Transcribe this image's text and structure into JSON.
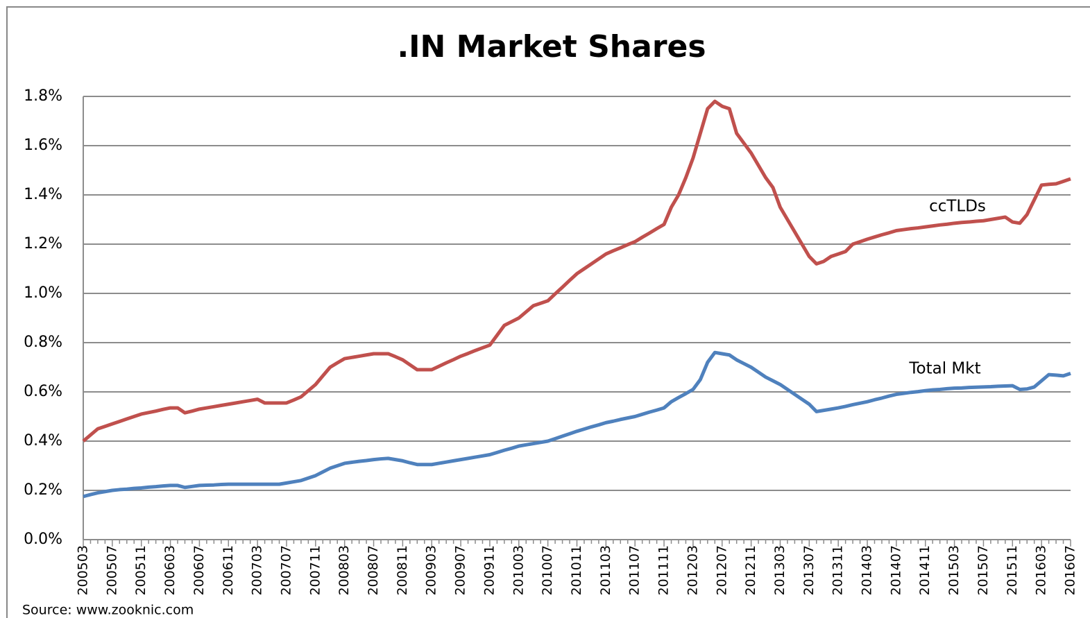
{
  "chart_data": {
    "type": "line",
    "title": ".IN Market Shares",
    "source": "Source: www.zooknic.com",
    "categories": [
      "200503",
      null,
      null,
      null,
      "200507",
      null,
      null,
      null,
      "200511",
      null,
      null,
      null,
      "200603",
      null,
      null,
      null,
      "200607",
      null,
      null,
      null,
      "200611",
      null,
      null,
      null,
      "200703",
      null,
      null,
      null,
      "200707",
      null,
      null,
      null,
      "200711",
      null,
      null,
      null,
      "200803",
      null,
      null,
      null,
      "200807",
      null,
      null,
      null,
      "200811",
      null,
      null,
      null,
      "200903",
      null,
      null,
      null,
      "200907",
      null,
      null,
      null,
      "200911",
      null,
      null,
      null,
      "201003",
      null,
      null,
      null,
      "201007",
      null,
      null,
      null,
      "201011",
      null,
      null,
      null,
      "201103",
      null,
      null,
      null,
      "201107",
      null,
      null,
      null,
      "201111",
      null,
      null,
      null,
      "201203",
      null,
      null,
      null,
      "201207",
      null,
      null,
      null,
      "201211",
      null,
      null,
      null,
      "201303",
      null,
      null,
      null,
      "201307",
      null,
      null,
      null,
      "201311",
      null,
      null,
      null,
      "201403",
      null,
      null,
      null,
      "201407",
      null,
      null,
      null,
      "201411",
      null,
      null,
      null,
      "201503",
      null,
      null,
      null,
      "201507",
      null,
      null,
      null,
      "201511",
      null,
      null,
      null,
      "201603",
      null,
      null,
      null,
      "201607"
    ],
    "series": [
      {
        "name": "ccTLDs",
        "color": "#c0504d",
        "values": [
          0.4,
          0.425,
          0.45,
          0.46,
          0.47,
          0.48,
          0.49,
          0.5,
          0.51,
          0.516,
          0.522,
          0.529,
          0.535,
          0.535,
          0.515,
          0.522,
          0.53,
          0.535,
          0.54,
          0.545,
          0.55,
          0.555,
          0.56,
          0.565,
          0.57,
          0.555,
          0.555,
          0.555,
          0.555,
          0.567,
          0.58,
          0.605,
          0.63,
          0.665,
          0.7,
          0.718,
          0.735,
          0.74,
          0.745,
          0.75,
          0.755,
          0.755,
          0.755,
          0.743,
          0.73,
          0.71,
          0.69,
          0.69,
          0.69,
          0.704,
          0.718,
          0.731,
          0.745,
          0.756,
          0.768,
          0.779,
          0.79,
          0.83,
          0.87,
          0.885,
          0.9,
          0.925,
          0.95,
          0.96,
          0.97,
          0.998,
          1.025,
          1.053,
          1.08,
          1.1,
          1.12,
          1.14,
          1.16,
          1.173,
          1.185,
          1.198,
          1.21,
          1.228,
          1.245,
          1.263,
          1.28,
          1.35,
          1.4,
          1.47,
          1.55,
          1.65,
          1.75,
          1.78,
          1.76,
          1.75,
          1.65,
          1.61,
          1.57,
          1.52,
          1.47,
          1.43,
          1.35,
          1.3,
          1.25,
          1.2,
          1.15,
          1.12,
          1.13,
          1.15,
          1.16,
          1.17,
          1.2,
          1.21,
          1.22,
          1.229,
          1.238,
          1.246,
          1.255,
          1.259,
          1.263,
          1.266,
          1.27,
          1.274,
          1.278,
          1.281,
          1.285,
          1.288,
          1.29,
          1.293,
          1.295,
          1.3,
          1.305,
          1.31,
          1.29,
          1.285,
          1.32,
          1.38,
          1.44,
          1.443,
          1.445,
          1.455,
          1.465
        ]
      },
      {
        "name": "Total Mkt",
        "color": "#4f81bd",
        "values": [
          0.175,
          0.183,
          0.19,
          0.195,
          0.2,
          0.203,
          0.205,
          0.208,
          0.21,
          0.213,
          0.215,
          0.218,
          0.22,
          0.22,
          0.212,
          0.216,
          0.22,
          0.221,
          0.222,
          0.224,
          0.225,
          0.225,
          0.225,
          0.225,
          0.225,
          0.225,
          0.225,
          0.225,
          0.23,
          0.235,
          0.24,
          0.25,
          0.26,
          0.275,
          0.29,
          0.3,
          0.31,
          0.314,
          0.318,
          0.321,
          0.325,
          0.328,
          0.33,
          0.325,
          0.32,
          0.312,
          0.305,
          0.305,
          0.305,
          0.31,
          0.315,
          0.32,
          0.325,
          0.33,
          0.335,
          0.34,
          0.345,
          0.354,
          0.363,
          0.371,
          0.38,
          0.385,
          0.39,
          0.395,
          0.4,
          0.41,
          0.42,
          0.43,
          0.44,
          0.449,
          0.458,
          0.466,
          0.475,
          0.481,
          0.488,
          0.494,
          0.5,
          0.509,
          0.518,
          0.526,
          0.535,
          0.56,
          0.577,
          0.593,
          0.61,
          0.65,
          0.72,
          0.76,
          0.755,
          0.75,
          0.73,
          0.715,
          0.7,
          0.68,
          0.66,
          0.645,
          0.63,
          0.61,
          0.59,
          0.57,
          0.55,
          0.52,
          0.525,
          0.53,
          0.535,
          0.541,
          0.548,
          0.554,
          0.56,
          0.568,
          0.575,
          0.583,
          0.59,
          0.594,
          0.598,
          0.601,
          0.605,
          0.608,
          0.61,
          0.613,
          0.615,
          0.616,
          0.618,
          0.619,
          0.62,
          0.621,
          0.623,
          0.624,
          0.625,
          0.61,
          0.612,
          0.62,
          0.645,
          0.67,
          0.668,
          0.665,
          0.675
        ]
      }
    ],
    "ylim": [
      0,
      1.8
    ],
    "yticks": [
      {
        "value": 0,
        "label": "0.0%"
      },
      {
        "value": 0.2,
        "label": "0.2%"
      },
      {
        "value": 0.4,
        "label": "0.4%"
      },
      {
        "value": 0.6,
        "label": "0.6%"
      },
      {
        "value": 0.8,
        "label": "0.8%"
      },
      {
        "value": 1.0,
        "label": "1.0%"
      },
      {
        "value": 1.2,
        "label": "1.2%"
      },
      {
        "value": 1.4,
        "label": "1.4%"
      },
      {
        "value": 1.6,
        "label": "1.6%"
      },
      {
        "value": 1.8,
        "label": "1.8%"
      }
    ],
    "grid": true
  }
}
